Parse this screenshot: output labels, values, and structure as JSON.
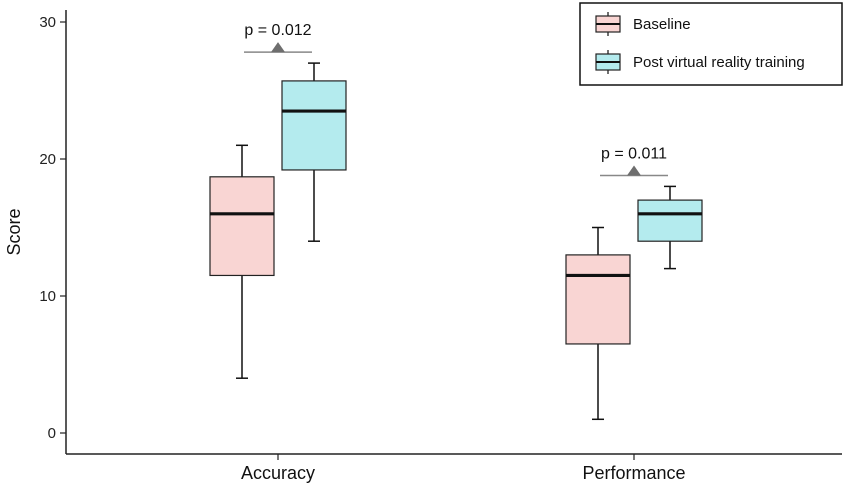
{
  "chart_data": {
    "type": "box",
    "ylabel": "Score",
    "ylim": [
      0,
      30
    ],
    "yticks": [
      0,
      10,
      20,
      30
    ],
    "categories": [
      "Accuracy",
      "Performance"
    ],
    "series": [
      {
        "name": "Baseline",
        "color": "#f9d5d3",
        "boxes": [
          {
            "min": 4,
            "q1": 11.5,
            "median": 16,
            "q3": 18.7,
            "max": 21
          },
          {
            "min": 1,
            "q1": 6.5,
            "median": 11.5,
            "q3": 13,
            "max": 15
          }
        ]
      },
      {
        "name": "Post virtual reality training",
        "color": "#b4ebee",
        "boxes": [
          {
            "min": 14,
            "q1": 19.2,
            "median": 23.5,
            "q3": 25.7,
            "max": 27
          },
          {
            "min": 12,
            "q1": 14,
            "median": 16,
            "q3": 17,
            "max": 18
          }
        ]
      }
    ],
    "annotations": [
      {
        "category": "Accuracy",
        "text": "p = 0.012",
        "y": 27.8
      },
      {
        "category": "Performance",
        "text": "p = 0.011",
        "y": 18.8
      }
    ],
    "legend_position": "top-right",
    "grid": false
  }
}
